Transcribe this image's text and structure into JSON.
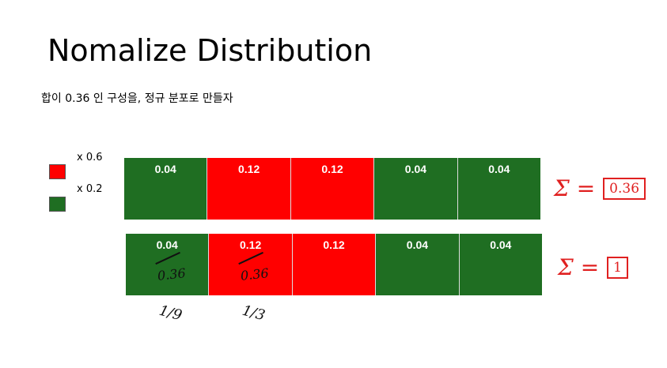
{
  "title": "Nomalize Distribution",
  "subtitle": "합이 0.36 인 구성을, 정규 분포로 만들자",
  "legend": [
    {
      "label": "x 0.6",
      "color": "#ff0000"
    },
    {
      "label": "x 0.2",
      "color": "#1f6e22"
    }
  ],
  "sum_prefix": "Σ =",
  "rows": [
    {
      "sum": "0.36",
      "cells": [
        {
          "value": 0.04,
          "color": "#1f6e22"
        },
        {
          "value": 0.12,
          "color": "#ff0000"
        },
        {
          "value": 0.12,
          "color": "#ff0000"
        },
        {
          "value": 0.04,
          "color": "#1f6e22"
        },
        {
          "value": 0.04,
          "color": "#1f6e22"
        }
      ]
    },
    {
      "sum": "1",
      "cells": [
        {
          "value": 0.04,
          "color": "#1f6e22",
          "note": "0.36",
          "below": "1/9"
        },
        {
          "value": 0.12,
          "color": "#ff0000",
          "note": "0.36",
          "below": "1/3"
        },
        {
          "value": 0.12,
          "color": "#ff0000"
        },
        {
          "value": 0.04,
          "color": "#1f6e22"
        },
        {
          "value": 0.04,
          "color": "#1f6e22"
        }
      ]
    }
  ]
}
